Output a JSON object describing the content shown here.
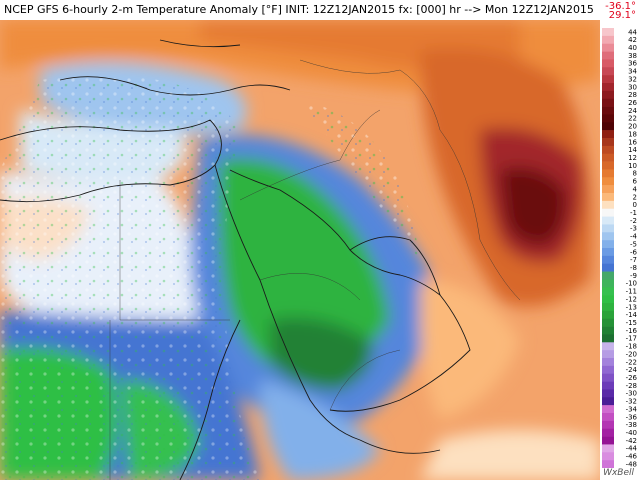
{
  "header": {
    "title": "NCEP GFS 6-hourly 2-m Temperature Anomaly [°F] INIT: 12Z12JAN2015 fx: [000] hr --> Mon 12Z12JAN2015",
    "min_value": "-36.1°",
    "max_value": "29.1°"
  },
  "legend": {
    "labels": [
      "44",
      "42",
      "40",
      "38",
      "36",
      "34",
      "32",
      "30",
      "28",
      "26",
      "24",
      "22",
      "20",
      "18",
      "16",
      "14",
      "12",
      "10",
      "8",
      "6",
      "4",
      "2",
      "0",
      "-1",
      "-2",
      "-3",
      "-4",
      "-5",
      "-6",
      "-7",
      "-8",
      "-9",
      "-10",
      "-11",
      "-12",
      "-13",
      "-14",
      "-15",
      "-16",
      "-17",
      "-18",
      "-20",
      "-22",
      "-24",
      "-26",
      "-28",
      "-30",
      "-32",
      "-34",
      "-36",
      "-38",
      "-40",
      "-42",
      "-44",
      "-46",
      "-48"
    ],
    "colors": [
      "#f7c6cb",
      "#f2a9b1",
      "#ea8b96",
      "#df6d7a",
      "#d85a66",
      "#c84855",
      "#b8363f",
      "#a2252c",
      "#8c1a1f",
      "#7a1115",
      "#6a0b0e",
      "#5c0608",
      "#4e0305",
      "#8f1f12",
      "#a7361c",
      "#bd4a22",
      "#cc5a26",
      "#d8682a",
      "#e57a31",
      "#ef8d3e",
      "#f6a15a",
      "#fbb97a",
      "#fde0c0",
      "#f7f7f7",
      "#d8e9f7",
      "#bcd8f3",
      "#9fc5ef",
      "#82b0ea",
      "#6a9be4",
      "#5586dc",
      "#4474d2",
      "#44a86a",
      "#3eb45c",
      "#36c04f",
      "#2fbf45",
      "#2eb33f",
      "#2aa33a",
      "#259237",
      "#208134",
      "#1c7031",
      "#c7b4ea",
      "#b59ce4",
      "#a382dc",
      "#9068d2",
      "#7f52c6",
      "#6c3cb9",
      "#5a2aa8",
      "#4a1c96",
      "#d06bd0",
      "#c24fc2",
      "#b336b3",
      "#a322a3",
      "#941494",
      "#e0a6e6",
      "#d98de0",
      "#cf74d8"
    ]
  },
  "credit": "WxBell"
}
